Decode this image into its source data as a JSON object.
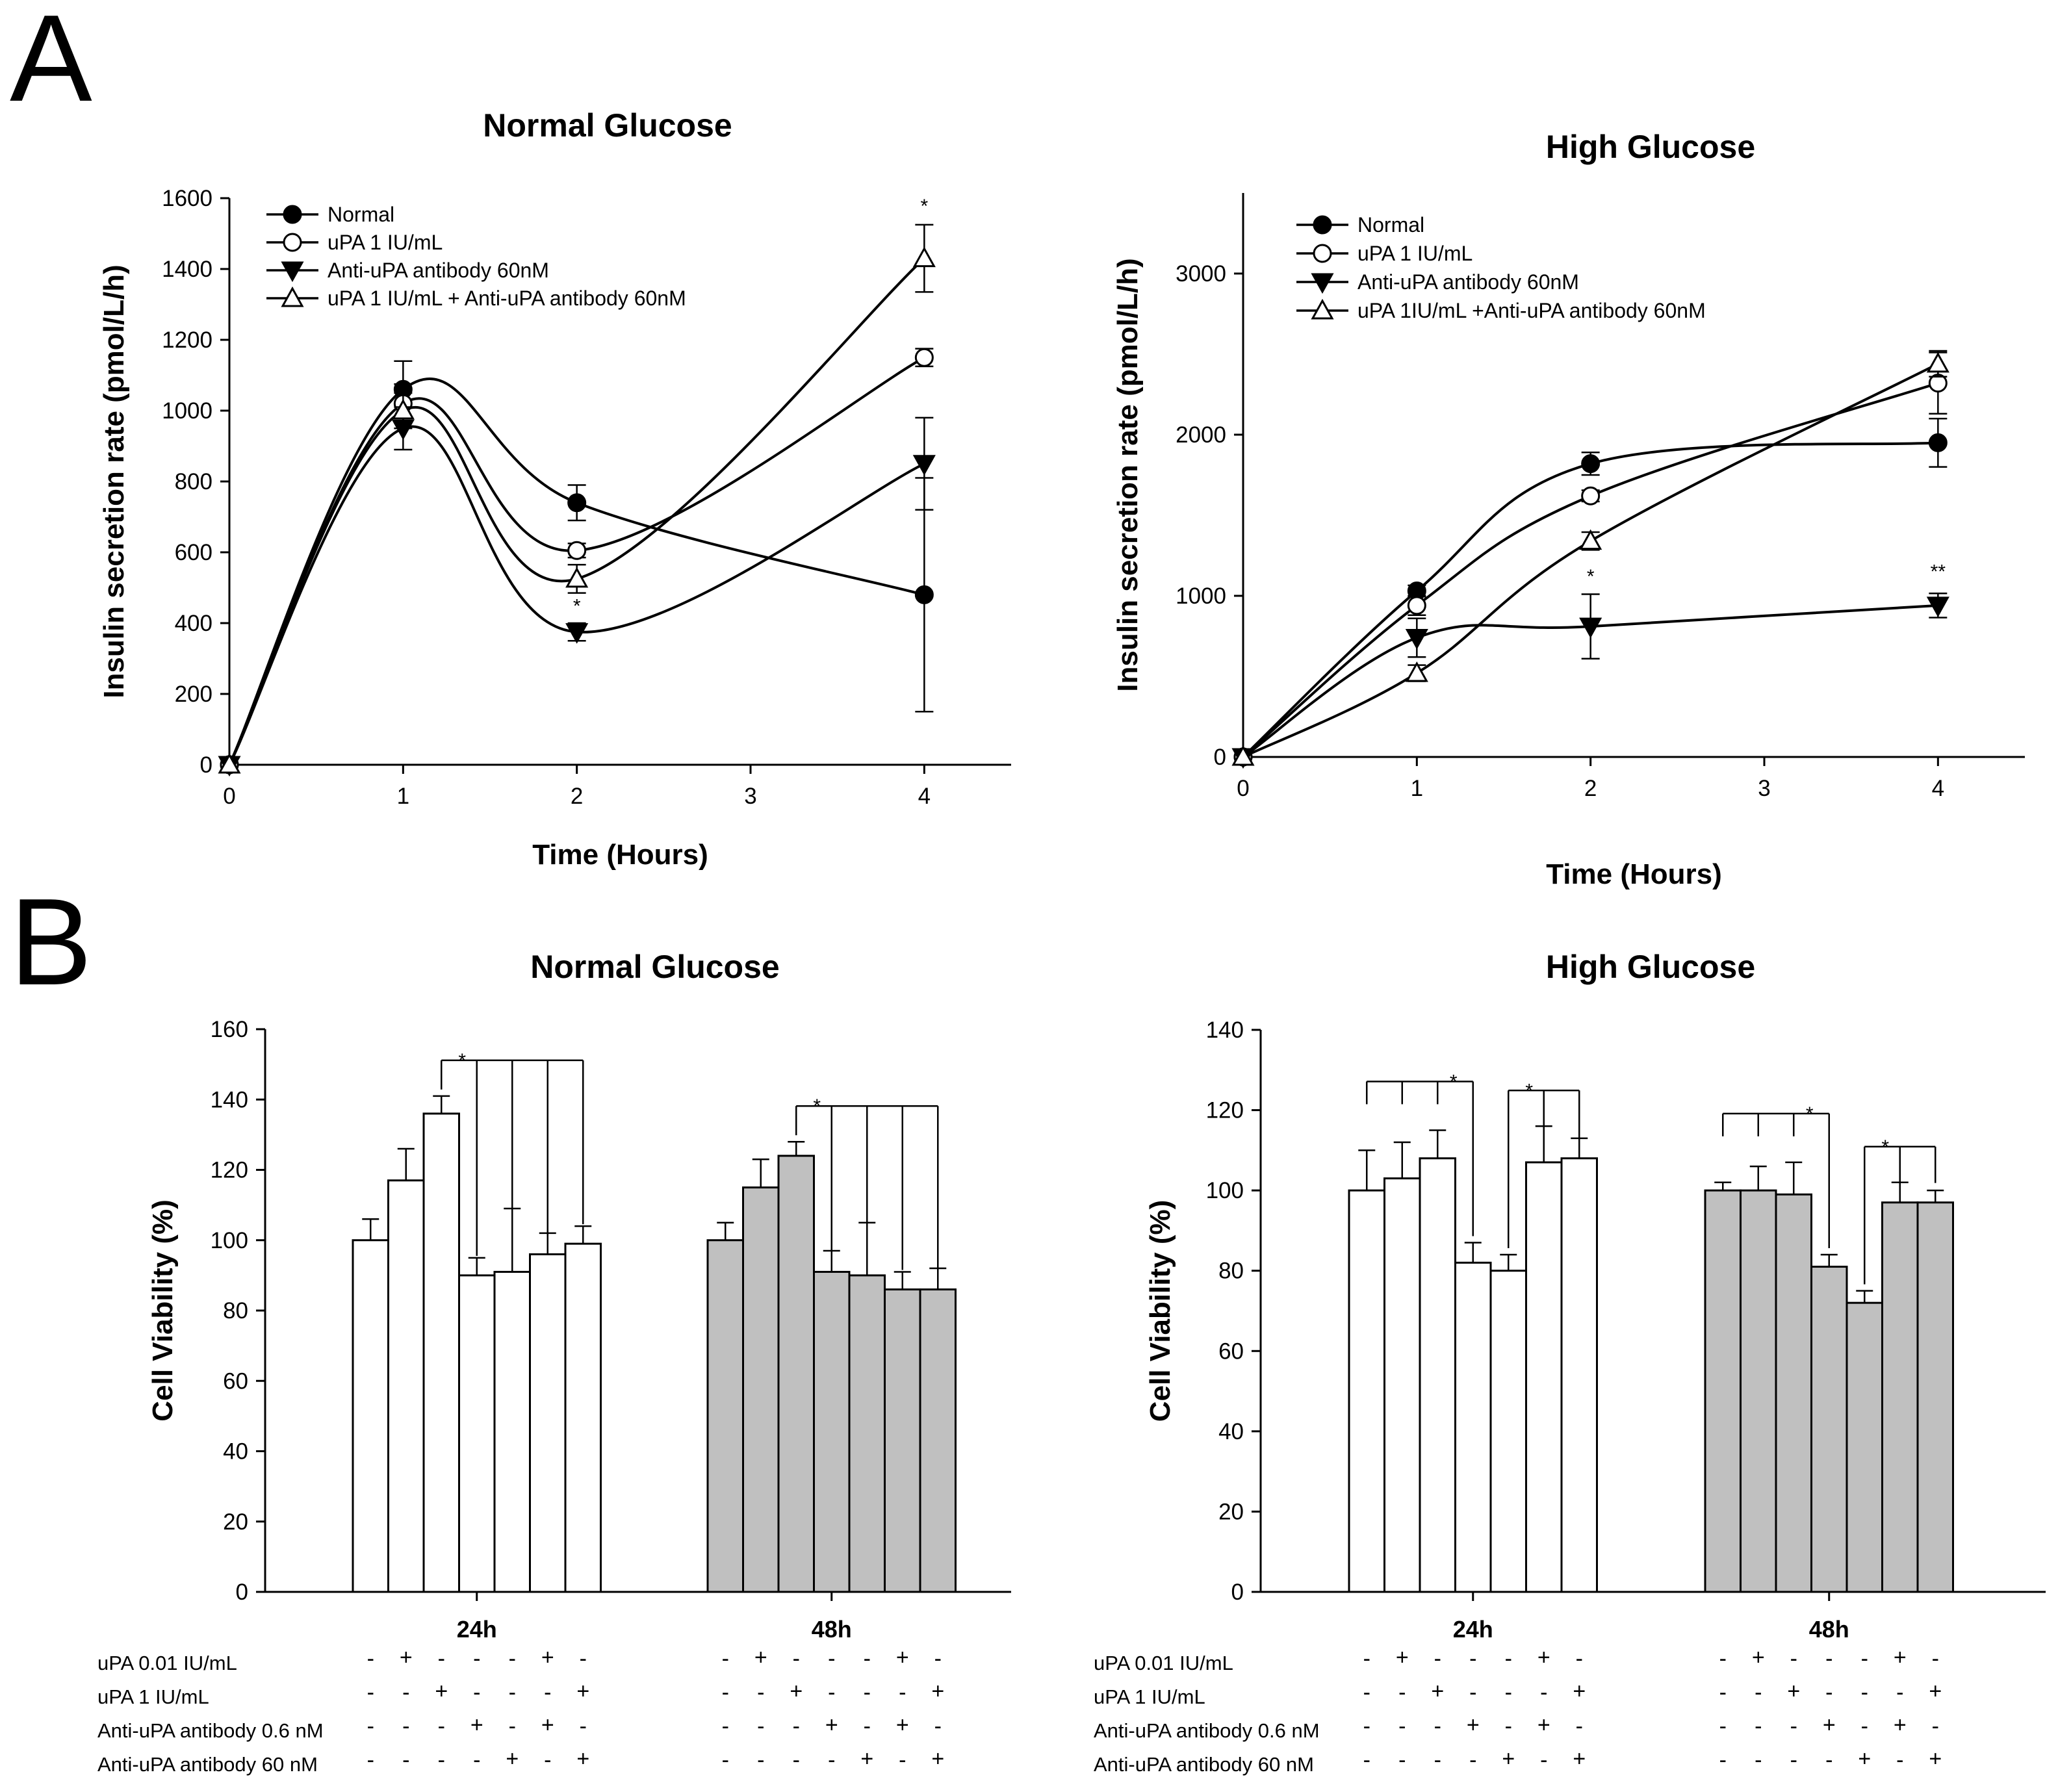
{
  "figure": {
    "panel_a_label": "A",
    "panel_b_label": "B"
  },
  "chart_data": [
    {
      "id": "a1",
      "type": "line",
      "title": "Normal Glucose",
      "xlabel": "Time (Hours)",
      "ylabel": "Insulin secretion rate (pmol/L/h)",
      "xlim": [
        0,
        4.5
      ],
      "ylim": [
        0,
        1600
      ],
      "xticks": [
        "0",
        "1",
        "2",
        "3",
        "4"
      ],
      "yticks": [
        "0",
        "200",
        "400",
        "600",
        "800",
        "1000",
        "1200",
        "1400",
        "1600"
      ],
      "x": [
        0,
        1,
        2,
        4
      ],
      "series": [
        {
          "name": "Normal",
          "marker": "filled-circle",
          "values": [
            0,
            1060,
            740,
            480
          ],
          "errors": [
            0,
            80,
            50,
            330
          ]
        },
        {
          "name": "uPA 1 IU/mL",
          "marker": "open-circle",
          "values": [
            0,
            1020,
            605,
            1150
          ],
          "errors": [
            0,
            55,
            20,
            25
          ]
        },
        {
          "name": "Anti-uPA antibody 60nM",
          "marker": "filled-triangle-down",
          "values": [
            0,
            950,
            375,
            850
          ],
          "errors": [
            0,
            60,
            25,
            130
          ]
        },
        {
          "name": "uPA 1 IU/mL + Anti-uPA antibody 60nM",
          "marker": "open-triangle-up",
          "values": [
            0,
            1000,
            525,
            1430
          ],
          "errors": [
            0,
            50,
            40,
            95
          ]
        }
      ],
      "annotations": [
        {
          "text": "*",
          "x": 2,
          "y": 430
        },
        {
          "text": "*",
          "x": 4,
          "y": 1560
        }
      ],
      "legend_position": "top-left"
    },
    {
      "id": "a2",
      "type": "line",
      "title": "High Glucose",
      "xlabel": "Time (Hours)",
      "ylabel": "Insulin secretion rate (pmol/L/h)",
      "xlim": [
        0,
        4.5
      ],
      "ylim": [
        0,
        3500
      ],
      "xticks": [
        "0",
        "1",
        "2",
        "3",
        "4"
      ],
      "yticks": [
        "0",
        "1000",
        "2000",
        "3000"
      ],
      "x": [
        0,
        1,
        2,
        4
      ],
      "series": [
        {
          "name": "Normal",
          "marker": "filled-circle",
          "values": [
            0,
            1030,
            1820,
            1950
          ],
          "errors": [
            0,
            35,
            70,
            150
          ]
        },
        {
          "name": "uPA 1 IU/mL",
          "marker": "open-circle",
          "values": [
            0,
            940,
            1620,
            2320
          ],
          "errors": [
            0,
            60,
            35,
            190
          ]
        },
        {
          "name": "Anti-uPA antibody 60nM",
          "marker": "filled-triangle-down",
          "values": [
            0,
            740,
            810,
            940
          ],
          "errors": [
            0,
            120,
            200,
            75
          ]
        },
        {
          "name": "uPA 1IU/mL +Anti-uPA antibody 60nM",
          "marker": "open-triangle-up",
          "values": [
            0,
            520,
            1340,
            2440
          ],
          "errors": [
            0,
            50,
            55,
            80
          ]
        }
      ],
      "annotations": [
        {
          "text": "*",
          "x": 2,
          "y": 1080
        },
        {
          "text": "**",
          "x": 4,
          "y": 1110
        }
      ],
      "legend_position": "top-left"
    },
    {
      "id": "b1",
      "type": "bar",
      "title": "Normal Glucose",
      "ylabel": "Cell Viability (%)",
      "ylim": [
        0,
        160
      ],
      "yticks": [
        "0",
        "20",
        "40",
        "60",
        "80",
        "100",
        "120",
        "140",
        "160"
      ],
      "groups": [
        {
          "label": "24h",
          "fill": "#ffffff",
          "values": [
            100,
            117,
            136,
            90,
            91,
            96,
            99
          ],
          "errors": [
            6,
            9,
            5,
            5,
            18,
            6,
            5
          ]
        },
        {
          "label": "48h",
          "fill": "#c0c0c0",
          "values": [
            100,
            115,
            124,
            91,
            90,
            86,
            86
          ],
          "errors": [
            5,
            8,
            4,
            6,
            15,
            5,
            6
          ]
        }
      ],
      "significance_brackets": [
        {
          "group": 0,
          "reference_bar": 2,
          "compared_bars": [
            3,
            4,
            5,
            6
          ],
          "label": "*"
        },
        {
          "group": 1,
          "reference_bar": 2,
          "compared_bars": [
            3,
            4,
            5,
            6
          ],
          "label": "*"
        }
      ],
      "treatment_rows": [
        {
          "label": "uPA 0.01 IU/mL",
          "signs": [
            "-",
            "+",
            "-",
            "-",
            "-",
            "+",
            "-"
          ]
        },
        {
          "label": "uPA 1 IU/mL",
          "signs": [
            "-",
            "-",
            "+",
            "-",
            "-",
            "-",
            "+"
          ]
        },
        {
          "label": "Anti-uPA antibody 0.6 nM",
          "signs": [
            "-",
            "-",
            "-",
            "+",
            "-",
            "+",
            "-"
          ]
        },
        {
          "label": "Anti-uPA antibody 60 nM",
          "signs": [
            "-",
            "-",
            "-",
            "-",
            "+",
            "-",
            "+"
          ]
        }
      ]
    },
    {
      "id": "b2",
      "type": "bar",
      "title": "High Glucose",
      "ylabel": "Cell Viability (%)",
      "ylim": [
        0,
        140
      ],
      "yticks": [
        "0",
        "20",
        "40",
        "60",
        "80",
        "100",
        "120",
        "140"
      ],
      "groups": [
        {
          "label": "24h",
          "fill": "#ffffff",
          "values": [
            100,
            103,
            108,
            82,
            80,
            107,
            108
          ],
          "errors": [
            10,
            9,
            7,
            5,
            4,
            9,
            5
          ]
        },
        {
          "label": "48h",
          "fill": "#c0c0c0",
          "values": [
            100,
            100,
            99,
            81,
            72,
            97,
            97
          ],
          "errors": [
            2,
            6,
            8,
            3,
            3,
            5,
            3
          ]
        }
      ],
      "significance_brackets": [
        {
          "group": 0,
          "reference_bar": 3,
          "compared_bars": [
            0,
            1,
            2
          ],
          "label": "*"
        },
        {
          "group": 0,
          "reference_bar": 4,
          "compared_bars": [
            5,
            6
          ],
          "label": "*"
        },
        {
          "group": 1,
          "reference_bar": 3,
          "compared_bars": [
            0,
            1,
            2
          ],
          "label": "*"
        },
        {
          "group": 1,
          "reference_bar": 4,
          "compared_bars": [
            5,
            6
          ],
          "label": "*"
        }
      ],
      "treatment_rows": [
        {
          "label": "uPA 0.01 IU/mL",
          "signs": [
            "-",
            "+",
            "-",
            "-",
            "-",
            "+",
            "-"
          ]
        },
        {
          "label": "uPA 1 IU/mL",
          "signs": [
            "-",
            "-",
            "+",
            "-",
            "-",
            "-",
            "+"
          ]
        },
        {
          "label": "Anti-uPA antibody 0.6 nM",
          "signs": [
            "-",
            "-",
            "-",
            "+",
            "-",
            "+",
            "-"
          ]
        },
        {
          "label": "Anti-uPA antibody 60 nM",
          "signs": [
            "-",
            "-",
            "-",
            "-",
            "+",
            "-",
            "+"
          ]
        }
      ]
    }
  ]
}
